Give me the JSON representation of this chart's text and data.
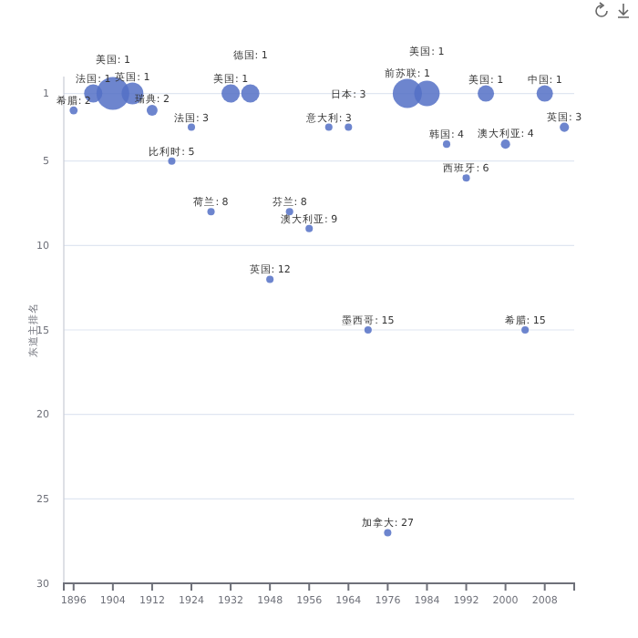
{
  "chart_data": {
    "type": "bubble",
    "ylabel": "东道主排名",
    "categories": [
      "1896",
      null,
      "1904",
      null,
      "1912",
      null,
      "1924",
      null,
      "1932",
      null,
      "1948",
      null,
      "1956",
      null,
      "1964",
      null,
      "1976",
      null,
      "1984",
      null,
      "1992",
      null,
      "2000",
      null,
      "2008",
      null
    ],
    "values": [
      2,
      1,
      1,
      1,
      2,
      5,
      3,
      8,
      1,
      1,
      12,
      8,
      9,
      3,
      3,
      15,
      27,
      1,
      1,
      4,
      6,
      1,
      4,
      15,
      1,
      3
    ],
    "sizes": [
      0.06,
      0.31,
      1,
      0.44,
      0.11,
      0.05,
      0.05,
      0.05,
      0.31,
      0.31,
      0.05,
      0.05,
      0.05,
      0.05,
      0.05,
      0.05,
      0.05,
      0.79,
      0.6,
      0.05,
      0.05,
      0.25,
      0.08,
      0.05,
      0.25,
      0.08
    ],
    "value_labels": [
      "希腊: 2",
      "法国: 1",
      "美国: 1",
      "英国: 1",
      "瑞典: 2",
      "比利时: 5",
      "法国: 3",
      "荷兰: 8",
      "美国: 1",
      "德国: 1",
      "英国: 12",
      "芬兰: 8",
      "澳大利亚: 9",
      "意大利: 3",
      "日本: 3",
      "墨西哥: 15",
      "加拿大: 27",
      "前苏联: 1",
      "美国: 1",
      "韩国: 4",
      "西班牙: 6",
      "美国: 1",
      "澳大利亚: 4",
      "希腊: 15",
      "中国: 1",
      "英国: 3"
    ],
    "color": "#5470c6",
    "ylim": [
      30,
      0
    ],
    "yticks": [
      1,
      5,
      10,
      15,
      20,
      25,
      30
    ],
    "grid": "y"
  }
}
